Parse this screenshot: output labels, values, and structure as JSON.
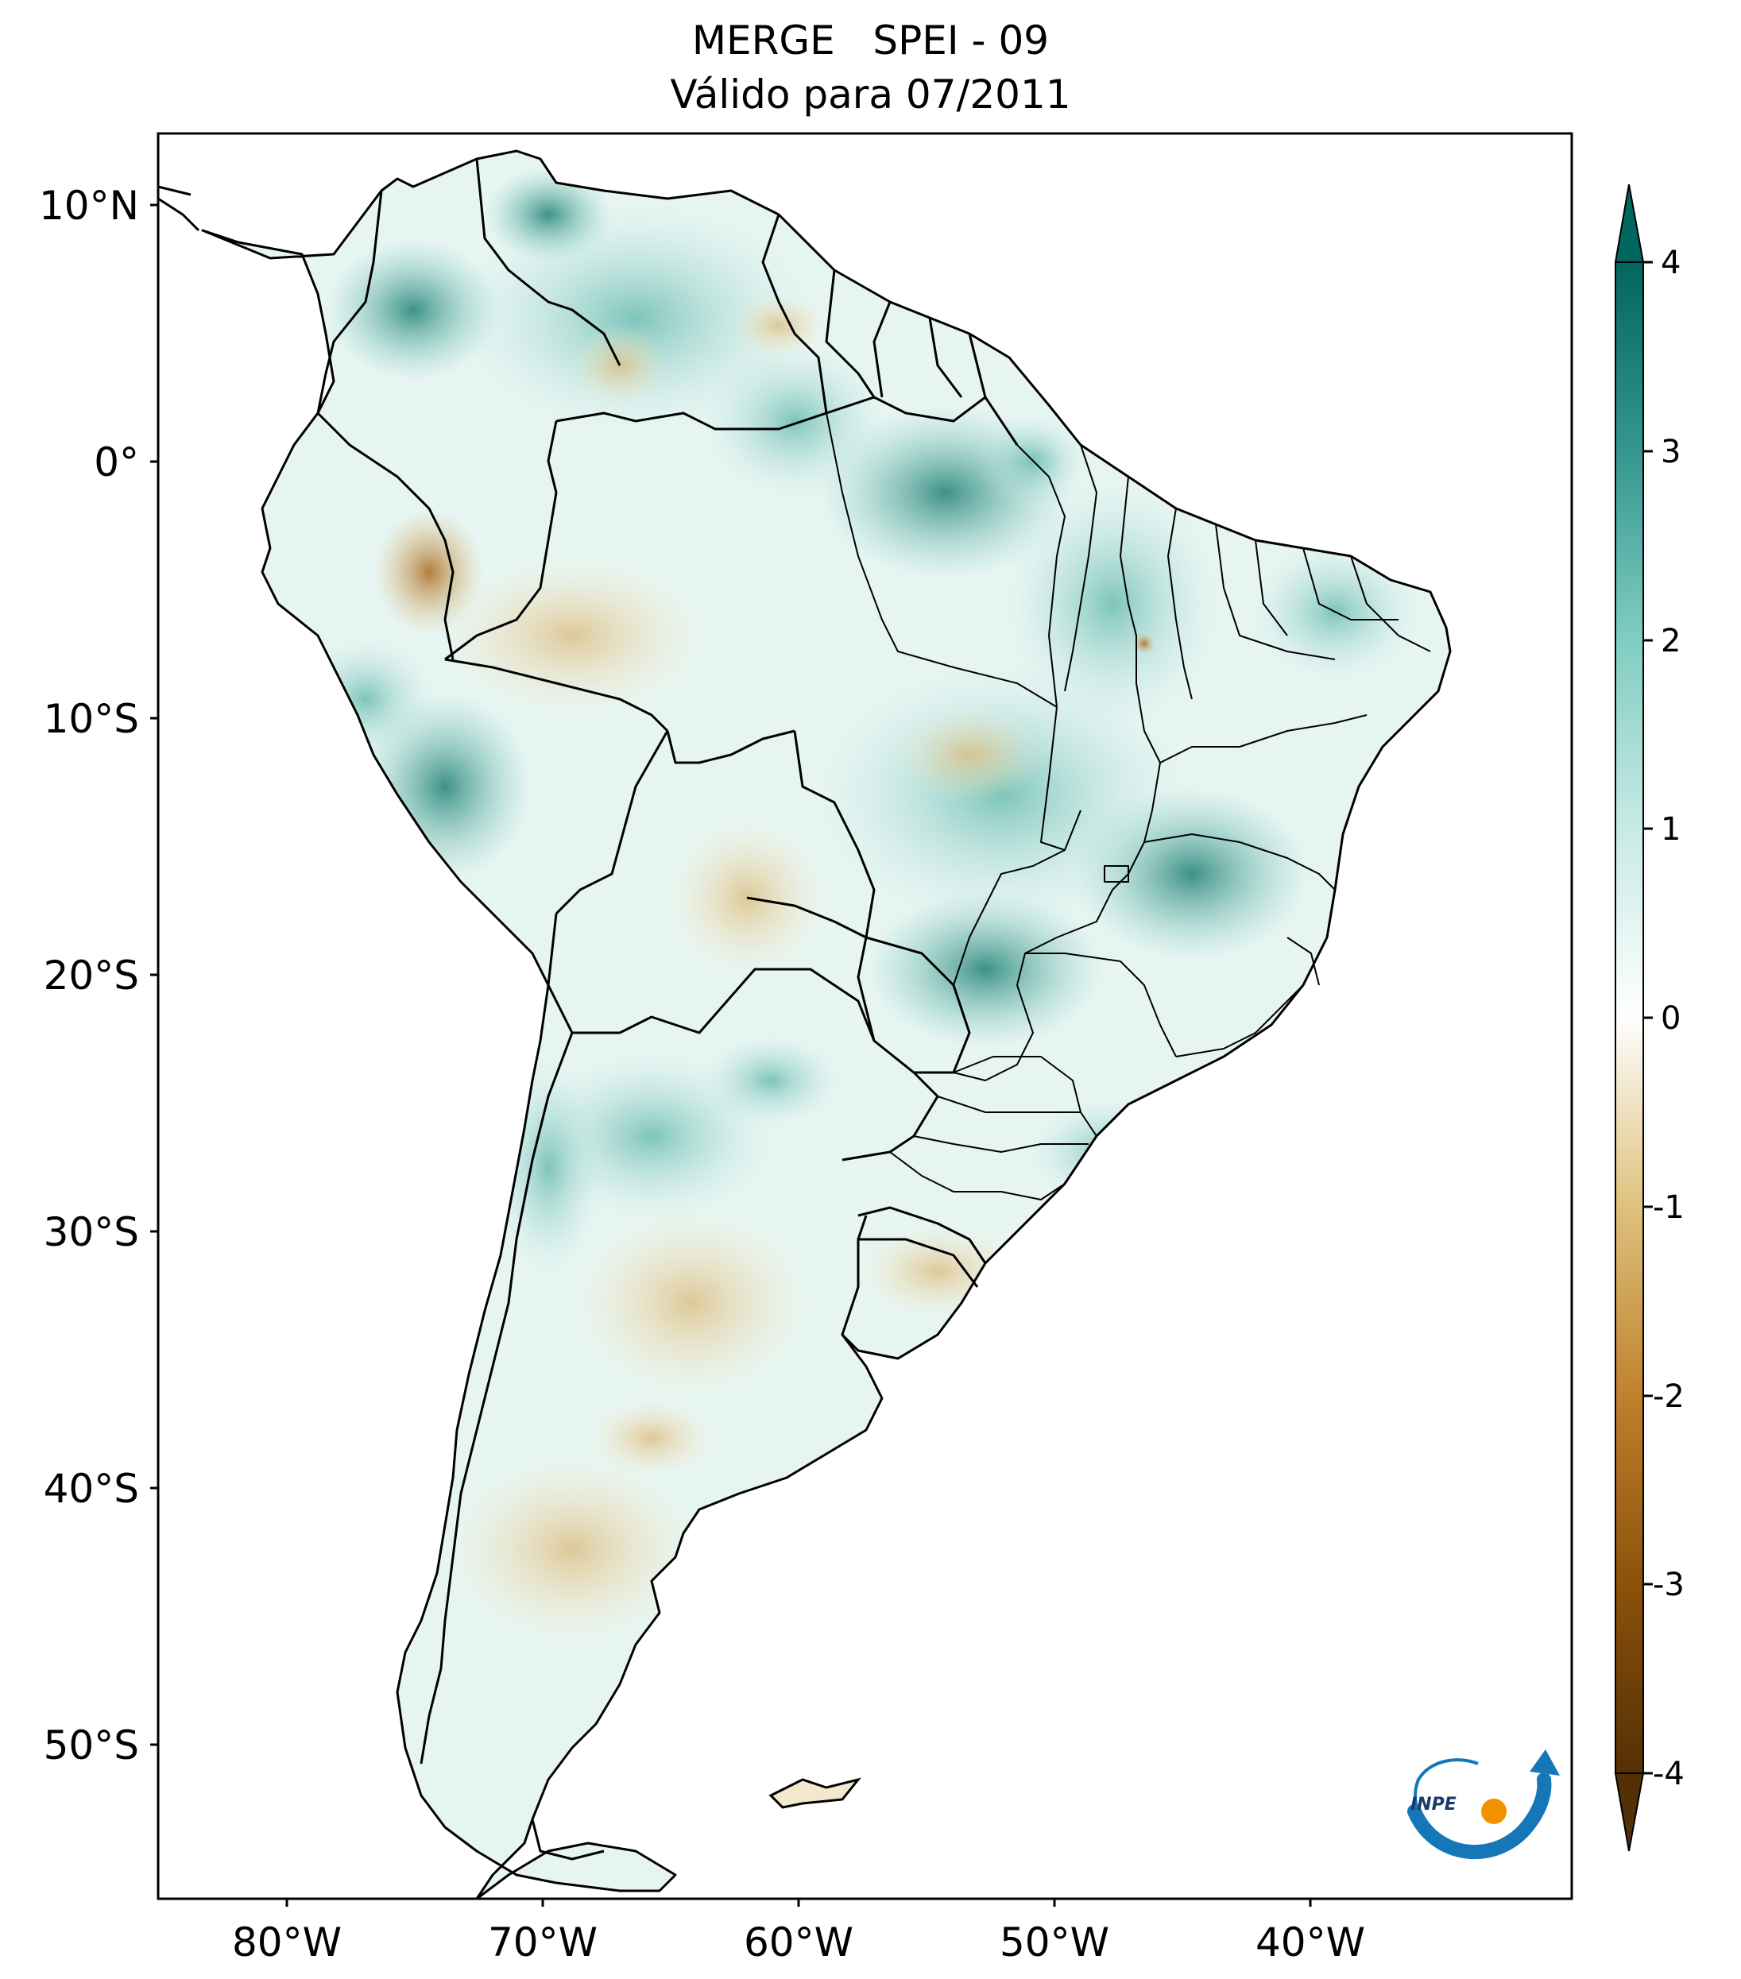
{
  "title": {
    "line1": "MERGE   SPEI - 09",
    "line2": "Válido para 07/2011"
  },
  "axes": {
    "lon_ticks": [
      "80°W",
      "70°W",
      "60°W",
      "50°W",
      "40°W"
    ],
    "lat_ticks": [
      "10°N",
      "0°",
      "10°S",
      "20°S",
      "30°S",
      "40°S",
      "50°S"
    ]
  },
  "colorbar": {
    "ticks": [
      "4",
      "3",
      "2",
      "1",
      "0",
      "-1",
      "-2",
      "-3",
      "-4"
    ],
    "range": [
      -4,
      4
    ],
    "extend": "both",
    "colormap": "BrBG",
    "colors": {
      "dry_max": "#543005",
      "dry_mid": "#d2a860",
      "dry_low": "#f1e3c1",
      "neutral": "#ffffff",
      "wet_low": "#c4e9e3",
      "wet_mid": "#5fb3a8",
      "wet_max": "#003c30"
    }
  },
  "logo": {
    "text": "INPE",
    "colors": {
      "blue": "#1577b8",
      "orange": "#f39200"
    }
  }
}
